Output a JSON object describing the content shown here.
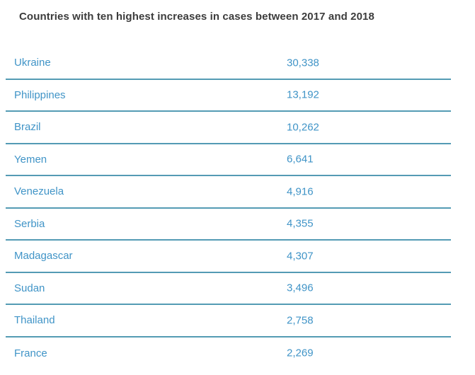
{
  "colors": {
    "accent": "#4094c7",
    "divider": "#549bb4",
    "title_color": "#3c3c3c",
    "bg": "#ffffff"
  },
  "chart_data": {
    "type": "table",
    "title": "Countries with ten highest increases in cases between 2017 and 2018",
    "categories": [
      "Ukraine",
      "Philippines",
      "Brazil",
      "Yemen",
      "Venezuela",
      "Serbia",
      "Madagascar",
      "Sudan",
      "Thailand",
      "France"
    ],
    "values": [
      30338,
      13192,
      10262,
      6641,
      4916,
      4355,
      4307,
      3496,
      2758,
      2269
    ],
    "legend": "none",
    "grid": "horizontal-dividers",
    "rows": [
      {
        "country": "Ukraine",
        "value": "30,338"
      },
      {
        "country": "Philippines",
        "value": "13,192"
      },
      {
        "country": "Brazil",
        "value": "10,262"
      },
      {
        "country": "Yemen",
        "value": "6,641"
      },
      {
        "country": "Venezuela",
        "value": "4,916"
      },
      {
        "country": "Serbia",
        "value": "4,355"
      },
      {
        "country": "Madagascar",
        "value": "4,307"
      },
      {
        "country": "Sudan",
        "value": "3,496"
      },
      {
        "country": "Thailand",
        "value": "2,758"
      },
      {
        "country": "France",
        "value": "2,269"
      }
    ]
  }
}
